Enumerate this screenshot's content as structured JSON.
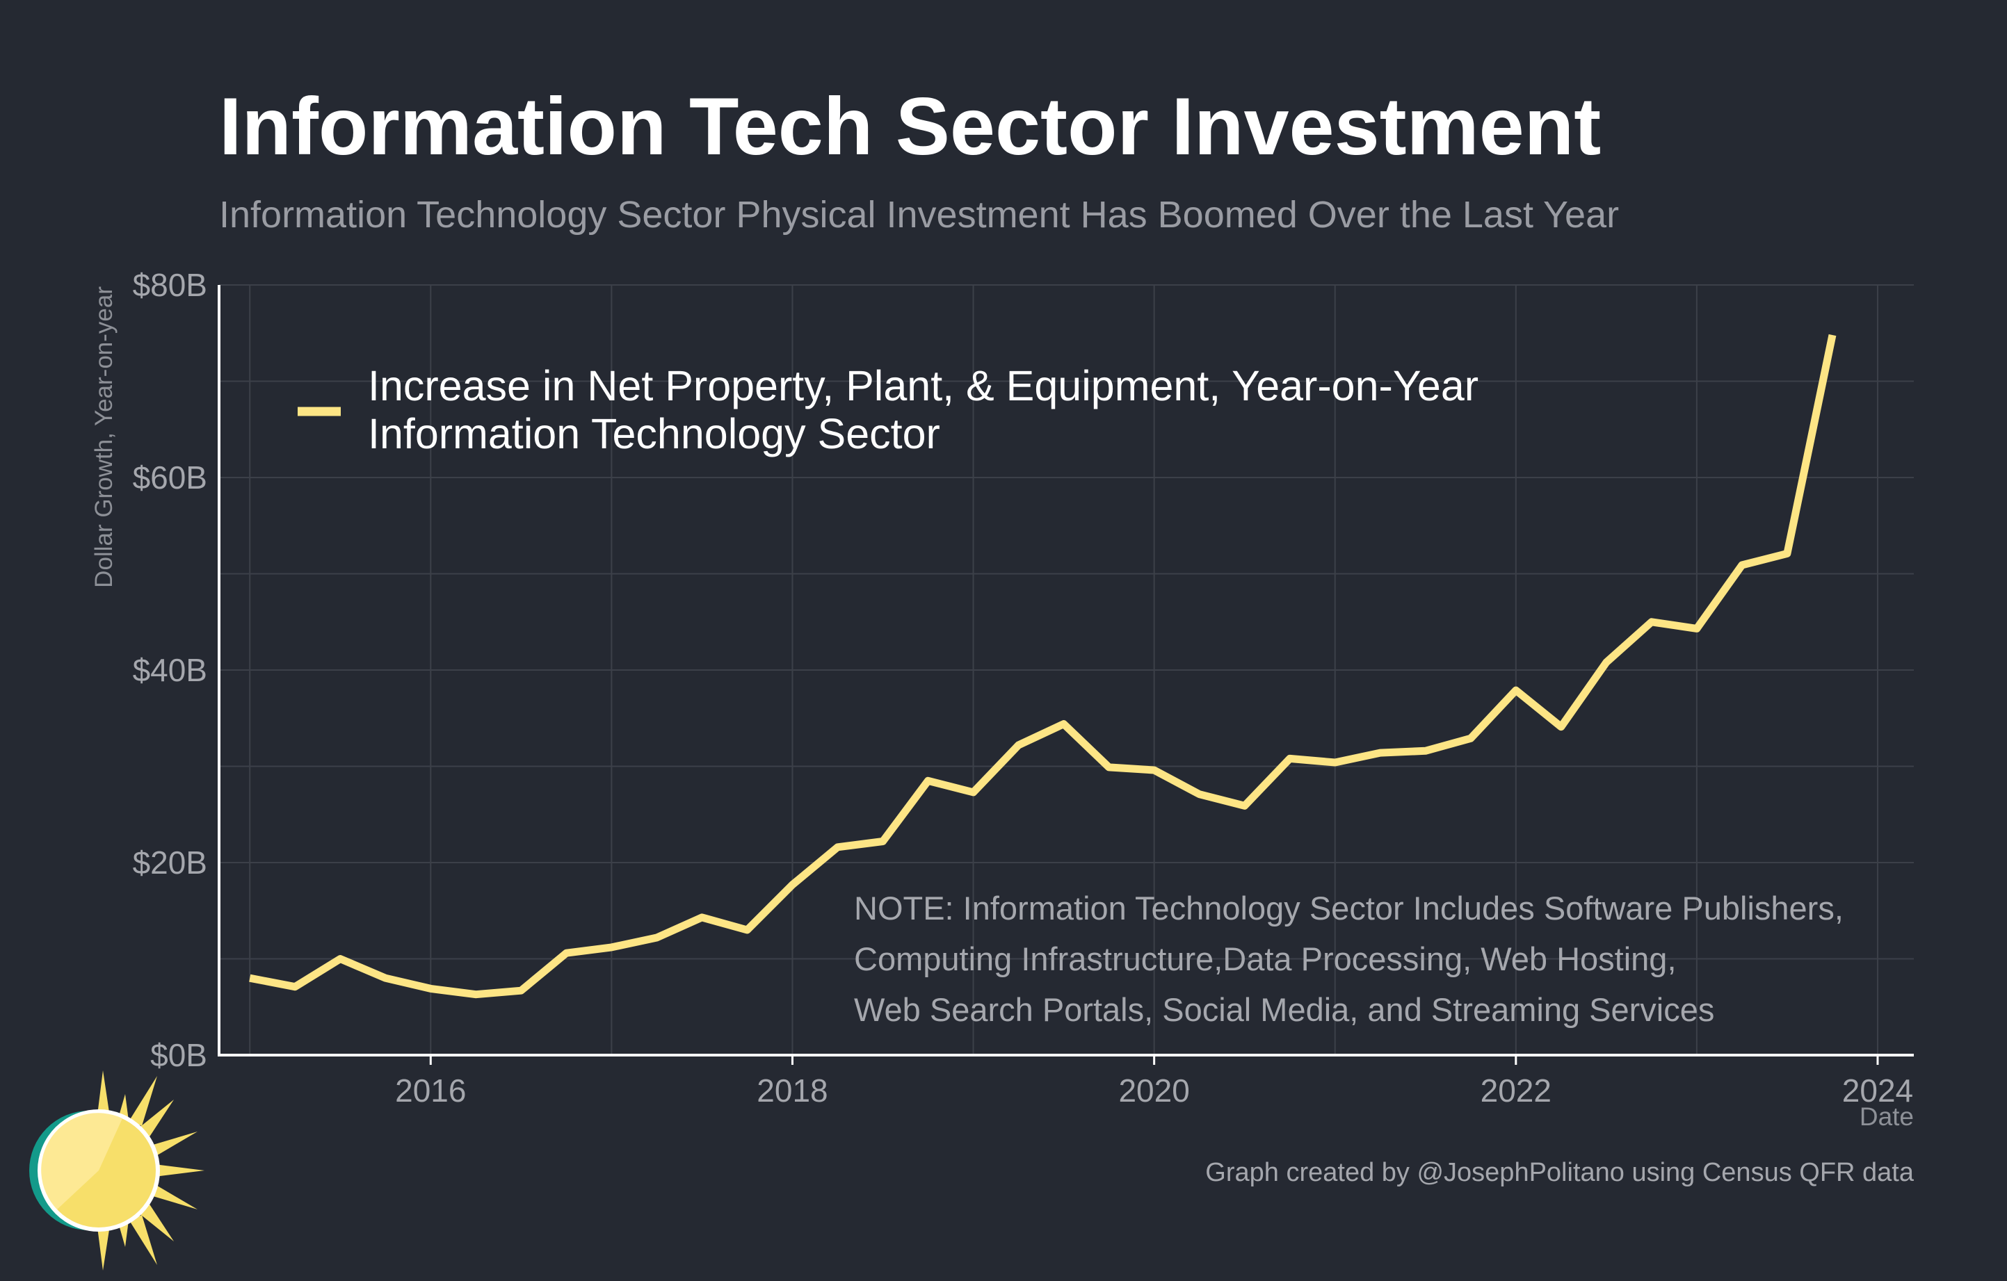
{
  "header": {
    "title": "Information Tech Sector Investment",
    "subtitle": "Information Technology Sector Physical Investment Has Boomed Over the Last Year"
  },
  "colors": {
    "background": "#252932",
    "line": "#fde585",
    "grid": "#3c4049",
    "axis": "#ffffff",
    "logo_ring": "#139a8a",
    "logo_sun": "#f7df6a"
  },
  "legend": {
    "line1": "Increase in Net Property, Plant, & Equipment, Year-on-Year",
    "line2": "Information Technology Sector"
  },
  "note": {
    "lines": [
      "NOTE: Information Technology Sector Includes Software Publishers,",
      "Computing Infrastructure,Data Processing, Web Hosting,",
      "Web Search Portals, Social Media, and Streaming Services"
    ]
  },
  "credit": "Graph created by @JosephPolitano using Census QFR data",
  "logo": {
    "icon": "sun-logo-icon"
  },
  "chart_data": {
    "type": "line",
    "xlabel": "Date",
    "ylabel": "Dollar Growth, Year-on-year",
    "xlim": [
      2014.83,
      2024.2
    ],
    "ylim": [
      0,
      80
    ],
    "grid": true,
    "legend_position": "top-left",
    "x_ticks": [
      2016,
      2018,
      2020,
      2022,
      2024
    ],
    "x_tick_labels": [
      "2016",
      "2018",
      "2020",
      "2022",
      "2024"
    ],
    "y_ticks": [
      0,
      20,
      40,
      60,
      80
    ],
    "y_tick_labels": [
      "$0B",
      "$20B",
      "$40B",
      "$60B",
      "$80B"
    ],
    "series": [
      {
        "name": "Increase in Net Property, Plant, & Equipment, Year-on-Year Information Technology Sector",
        "x": [
          2015.0,
          2015.25,
          2015.5,
          2015.75,
          2016.0,
          2016.25,
          2016.5,
          2016.75,
          2017.0,
          2017.25,
          2017.5,
          2017.75,
          2018.0,
          2018.25,
          2018.5,
          2018.75,
          2019.0,
          2019.25,
          2019.5,
          2019.75,
          2020.0,
          2020.25,
          2020.5,
          2020.75,
          2021.0,
          2021.25,
          2021.5,
          2021.75,
          2022.0,
          2022.25,
          2022.5,
          2022.75,
          2023.0,
          2023.25,
          2023.5,
          2023.75
        ],
        "values": [
          8.0,
          7.1,
          10.0,
          8.0,
          6.9,
          6.3,
          6.7,
          10.6,
          11.2,
          12.2,
          14.3,
          13.0,
          17.7,
          21.6,
          22.2,
          28.5,
          27.3,
          32.2,
          34.4,
          29.9,
          29.6,
          27.1,
          25.9,
          30.8,
          30.4,
          31.4,
          31.6,
          32.9,
          37.9,
          34.1,
          40.8,
          45.0,
          44.3,
          50.9,
          52.1,
          74.8
        ]
      }
    ]
  }
}
